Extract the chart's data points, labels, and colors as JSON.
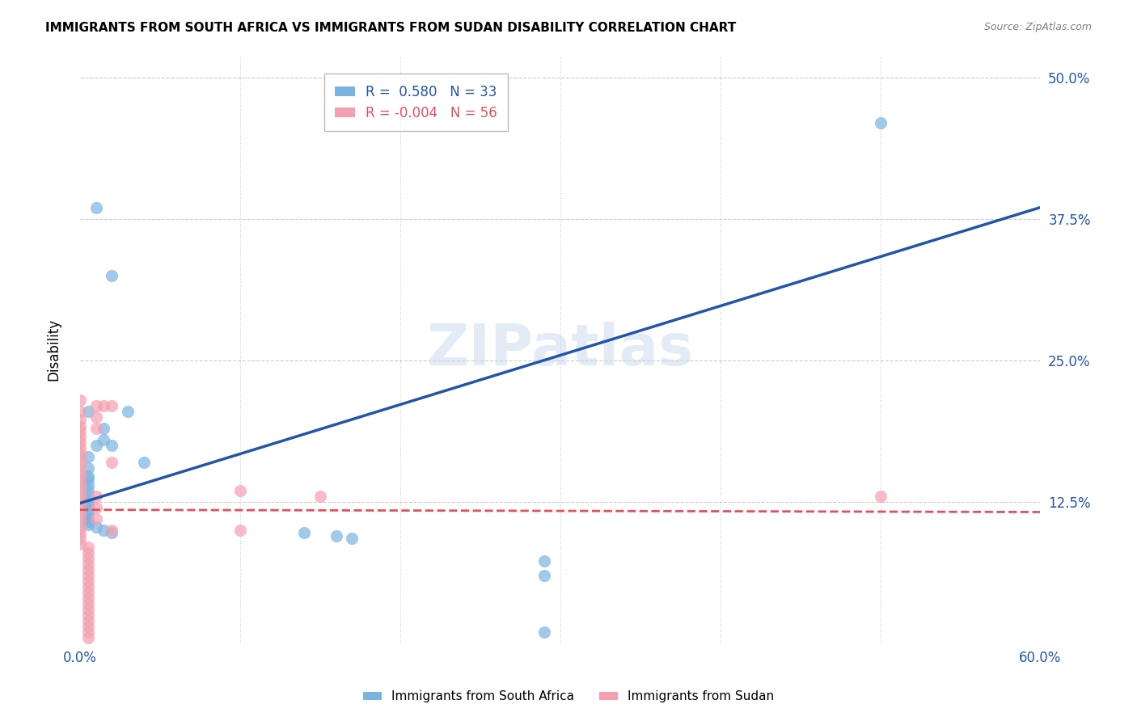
{
  "title": "IMMIGRANTS FROM SOUTH AFRICA VS IMMIGRANTS FROM SUDAN DISABILITY CORRELATION CHART",
  "source": "Source: ZipAtlas.com",
  "xlabel": "",
  "ylabel": "Disability",
  "xlim": [
    0.0,
    0.6
  ],
  "ylim": [
    0.0,
    0.52
  ],
  "xticks": [
    0.0,
    0.1,
    0.2,
    0.3,
    0.4,
    0.5,
    0.6
  ],
  "xticklabels": [
    "0.0%",
    "",
    "",
    "",
    "",
    "",
    "60.0%"
  ],
  "yticks": [
    0.0,
    0.125,
    0.25,
    0.375,
    0.5
  ],
  "yticklabels": [
    "",
    "12.5%",
    "25.0%",
    "37.5%",
    "50.0%"
  ],
  "background_color": "#ffffff",
  "grid_color": "#cccccc",
  "watermark": "ZIPatlas",
  "south_africa_color": "#7ab3e0",
  "sudan_color": "#f4a0b0",
  "south_africa_line_color": "#2255aa",
  "sudan_line_color": "#e05060",
  "R_south_africa": 0.58,
  "N_south_africa": 33,
  "R_sudan": -0.004,
  "N_sudan": 56,
  "south_africa_points": [
    [
      0.01,
      0.385
    ],
    [
      0.02,
      0.325
    ],
    [
      0.005,
      0.205
    ],
    [
      0.03,
      0.205
    ],
    [
      0.015,
      0.19
    ],
    [
      0.015,
      0.18
    ],
    [
      0.01,
      0.175
    ],
    [
      0.02,
      0.175
    ],
    [
      0.005,
      0.165
    ],
    [
      0.04,
      0.16
    ],
    [
      0.005,
      0.155
    ],
    [
      0.005,
      0.148
    ],
    [
      0.005,
      0.145
    ],
    [
      0.005,
      0.14
    ],
    [
      0.005,
      0.135
    ],
    [
      0.005,
      0.13
    ],
    [
      0.005,
      0.125
    ],
    [
      0.005,
      0.122
    ],
    [
      0.005,
      0.118
    ],
    [
      0.005,
      0.115
    ],
    [
      0.005,
      0.11
    ],
    [
      0.005,
      0.108
    ],
    [
      0.005,
      0.105
    ],
    [
      0.01,
      0.103
    ],
    [
      0.015,
      0.1
    ],
    [
      0.02,
      0.098
    ],
    [
      0.14,
      0.098
    ],
    [
      0.16,
      0.095
    ],
    [
      0.17,
      0.093
    ],
    [
      0.29,
      0.073
    ],
    [
      0.29,
      0.06
    ],
    [
      0.29,
      0.01
    ],
    [
      0.5,
      0.46
    ]
  ],
  "sudan_points": [
    [
      0.0,
      0.215
    ],
    [
      0.0,
      0.205
    ],
    [
      0.0,
      0.198
    ],
    [
      0.0,
      0.192
    ],
    [
      0.0,
      0.188
    ],
    [
      0.0,
      0.183
    ],
    [
      0.0,
      0.178
    ],
    [
      0.0,
      0.173
    ],
    [
      0.0,
      0.168
    ],
    [
      0.0,
      0.163
    ],
    [
      0.0,
      0.158
    ],
    [
      0.0,
      0.153
    ],
    [
      0.0,
      0.148
    ],
    [
      0.0,
      0.143
    ],
    [
      0.0,
      0.138
    ],
    [
      0.0,
      0.133
    ],
    [
      0.0,
      0.128
    ],
    [
      0.0,
      0.123
    ],
    [
      0.0,
      0.118
    ],
    [
      0.0,
      0.113
    ],
    [
      0.0,
      0.108
    ],
    [
      0.0,
      0.103
    ],
    [
      0.0,
      0.098
    ],
    [
      0.0,
      0.093
    ],
    [
      0.0,
      0.088
    ],
    [
      0.005,
      0.085
    ],
    [
      0.005,
      0.08
    ],
    [
      0.005,
      0.075
    ],
    [
      0.005,
      0.07
    ],
    [
      0.005,
      0.065
    ],
    [
      0.005,
      0.06
    ],
    [
      0.005,
      0.055
    ],
    [
      0.005,
      0.05
    ],
    [
      0.005,
      0.045
    ],
    [
      0.005,
      0.04
    ],
    [
      0.005,
      0.035
    ],
    [
      0.005,
      0.03
    ],
    [
      0.005,
      0.025
    ],
    [
      0.005,
      0.02
    ],
    [
      0.005,
      0.015
    ],
    [
      0.005,
      0.01
    ],
    [
      0.005,
      0.005
    ],
    [
      0.01,
      0.21
    ],
    [
      0.01,
      0.2
    ],
    [
      0.01,
      0.19
    ],
    [
      0.01,
      0.13
    ],
    [
      0.01,
      0.12
    ],
    [
      0.01,
      0.11
    ],
    [
      0.015,
      0.21
    ],
    [
      0.02,
      0.21
    ],
    [
      0.02,
      0.16
    ],
    [
      0.02,
      0.1
    ],
    [
      0.1,
      0.135
    ],
    [
      0.1,
      0.1
    ],
    [
      0.15,
      0.13
    ],
    [
      0.5,
      0.13
    ]
  ]
}
